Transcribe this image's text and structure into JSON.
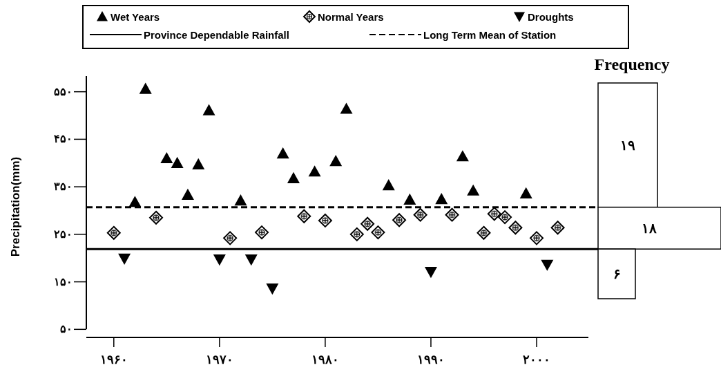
{
  "chart_data": [
    {
      "type": "scatter",
      "ylabel": "Precipitation(mm)",
      "legend": "top",
      "xlim": [
        1957.4,
        2004.9
      ],
      "xticks": [
        {
          "value": 1960,
          "label": "۱۹۶۰"
        },
        {
          "value": 1970,
          "label": "۱۹۷۰"
        },
        {
          "value": 1980,
          "label": "۱۹۸۰"
        },
        {
          "value": 1990,
          "label": "۱۹۹۰"
        },
        {
          "value": 2000,
          "label": "۲۰۰۰"
        }
      ],
      "ylim": [
        33,
        583
      ],
      "yticks": [
        {
          "value": 50,
          "label": "۵۰"
        },
        {
          "value": 150,
          "label": "۱۵۰"
        },
        {
          "value": 250,
          "label": "۲۵۰"
        },
        {
          "value": 350,
          "label": "۳۵۰"
        },
        {
          "value": 450,
          "label": "۴۵۰"
        },
        {
          "value": 550,
          "label": "۵۵۰"
        }
      ],
      "series": [
        {
          "name": "Wet Years",
          "color": "#000000",
          "marker": "triangle",
          "x": [
            1962,
            1963,
            1965,
            1966,
            1967,
            1968,
            1969,
            1972,
            1976,
            1977,
            1979,
            1981,
            1982,
            1986,
            1988,
            1991,
            1993,
            1994,
            1999
          ],
          "values": [
            318,
            556,
            410,
            400,
            333,
            397,
            511,
            321,
            420,
            368,
            382,
            404,
            514,
            353,
            323,
            324,
            414,
            342,
            336
          ]
        },
        {
          "name": "Normal Years",
          "color": "#000000",
          "marker": "diamond",
          "x": [
            1960,
            1964,
            1971,
            1974,
            1978,
            1980,
            1983,
            1984,
            1985,
            1987,
            1989,
            1992,
            1995,
            1996,
            1997,
            1998,
            2000,
            2002
          ],
          "values": [
            253,
            285,
            242,
            254,
            288,
            279,
            250,
            272,
            254,
            280,
            291,
            291,
            253,
            293,
            286,
            264,
            242,
            264
          ]
        },
        {
          "name": "Droughts",
          "color": "#000000",
          "marker": "triangle-down",
          "x": [
            1961,
            1970,
            1973,
            1975,
            1990,
            2001
          ],
          "values": [
            199,
            197,
            197,
            136,
            171,
            186
          ]
        }
      ],
      "ref_lines": [
        {
          "axis": "y",
          "value": 219,
          "label": "Province Dependable Rainfall",
          "line_style": "solid",
          "color": "#000000"
        },
        {
          "axis": "y",
          "value": 307,
          "label": "Long Term Mean of Station",
          "line_style": "dashed",
          "color": "#000000"
        }
      ]
    },
    {
      "type": "other",
      "title": "Frequency",
      "annotations": [
        "۱۹",
        "۱۸",
        "۶"
      ]
    }
  ]
}
